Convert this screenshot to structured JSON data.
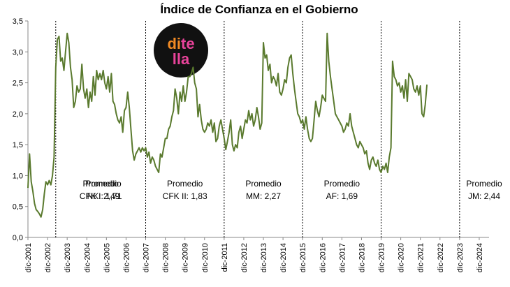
{
  "chart_data": {
    "type": "line",
    "title": "Índice de Confianza en el Gobierno",
    "xlabel": "",
    "ylabel": "",
    "ylim": [
      0,
      3.5
    ],
    "y_ticks": [
      "0,0",
      "0,5",
      "1,0",
      "1,5",
      "2,0",
      "2,5",
      "3,0",
      "3,5"
    ],
    "x_ticks": [
      "dic-2001",
      "dic-2002",
      "dic-2003",
      "dic-2004",
      "dic-2005",
      "dic-2006",
      "dic-2007",
      "dic-2008",
      "dic-2009",
      "dic-2010",
      "dic-2011",
      "dic-2012",
      "dic-2013",
      "dic-2014",
      "dic-2015",
      "dic-2016",
      "dic-2017",
      "dic-2018",
      "dic-2019",
      "dic-2020",
      "dic-2021",
      "dic-2022",
      "dic-2023",
      "dic-2024"
    ],
    "x_range": [
      "2001-12",
      "2025-06"
    ],
    "grid": false,
    "line_color": "#5a7a2e",
    "divider_dates": [
      "2003-05",
      "2007-12",
      "2011-12",
      "2015-12",
      "2019-12",
      "2023-12"
    ],
    "periods": [
      {
        "name": "Promedio",
        "label": "NK: 2,49"
      },
      {
        "name": "Promedio",
        "label": "CFK I: 1,71"
      },
      {
        "name": "Promedio",
        "label": "CFK II: 1,83"
      },
      {
        "name": "Promedio",
        "label": "MM: 2,27"
      },
      {
        "name": "Promedio",
        "label": "AF: 1,69"
      },
      {
        "name": "Promedio",
        "label": "JM: 2,44"
      }
    ],
    "series": [
      {
        "points": [
          [
            "2001-12",
            0.8
          ],
          [
            "2002-01",
            1.35
          ],
          [
            "2002-02",
            0.9
          ],
          [
            "2002-03",
            0.75
          ],
          [
            "2002-04",
            0.55
          ],
          [
            "2002-05",
            0.45
          ],
          [
            "2002-06",
            0.42
          ],
          [
            "2002-07",
            0.38
          ],
          [
            "2002-08",
            0.33
          ],
          [
            "2002-09",
            0.45
          ],
          [
            "2002-10",
            0.7
          ],
          [
            "2002-11",
            0.9
          ],
          [
            "2002-12",
            0.85
          ],
          [
            "2003-01",
            0.92
          ],
          [
            "2003-02",
            0.85
          ],
          [
            "2003-03",
            1.0
          ],
          [
            "2003-04",
            1.3
          ],
          [
            "2003-05",
            2.75
          ],
          [
            "2003-06",
            3.2
          ],
          [
            "2003-07",
            3.25
          ],
          [
            "2003-08",
            2.85
          ],
          [
            "2003-09",
            2.9
          ],
          [
            "2003-10",
            2.7
          ],
          [
            "2003-11",
            3.0
          ],
          [
            "2003-12",
            3.3
          ],
          [
            "2004-01",
            3.15
          ],
          [
            "2004-02",
            2.75
          ],
          [
            "2004-03",
            2.55
          ],
          [
            "2004-04",
            2.1
          ],
          [
            "2004-05",
            2.2
          ],
          [
            "2004-06",
            2.45
          ],
          [
            "2004-07",
            2.35
          ],
          [
            "2004-08",
            2.4
          ],
          [
            "2004-09",
            2.8
          ],
          [
            "2004-10",
            2.4
          ],
          [
            "2004-11",
            2.25
          ],
          [
            "2004-12",
            2.4
          ],
          [
            "2005-01",
            2.1
          ],
          [
            "2005-02",
            2.35
          ],
          [
            "2005-03",
            2.2
          ],
          [
            "2005-04",
            2.6
          ],
          [
            "2005-05",
            2.3
          ],
          [
            "2005-06",
            2.7
          ],
          [
            "2005-07",
            2.55
          ],
          [
            "2005-08",
            2.65
          ],
          [
            "2005-09",
            2.55
          ],
          [
            "2005-10",
            2.7
          ],
          [
            "2005-11",
            2.5
          ],
          [
            "2005-12",
            2.4
          ],
          [
            "2006-01",
            2.6
          ],
          [
            "2006-02",
            2.35
          ],
          [
            "2006-03",
            2.65
          ],
          [
            "2006-04",
            2.2
          ],
          [
            "2006-05",
            2.15
          ],
          [
            "2006-06",
            2.0
          ],
          [
            "2006-07",
            1.9
          ],
          [
            "2006-08",
            1.85
          ],
          [
            "2006-09",
            1.95
          ],
          [
            "2006-10",
            1.7
          ],
          [
            "2006-11",
            2.05
          ],
          [
            "2006-12",
            2.1
          ],
          [
            "2007-01",
            2.35
          ],
          [
            "2007-02",
            2.1
          ],
          [
            "2007-03",
            1.75
          ],
          [
            "2007-04",
            1.4
          ],
          [
            "2007-05",
            1.25
          ],
          [
            "2007-06",
            1.35
          ],
          [
            "2007-07",
            1.4
          ],
          [
            "2007-08",
            1.45
          ],
          [
            "2007-09",
            1.38
          ],
          [
            "2007-10",
            1.45
          ],
          [
            "2007-11",
            1.4
          ],
          [
            "2007-12",
            1.45
          ],
          [
            "2008-01",
            1.3
          ],
          [
            "2008-02",
            1.38
          ],
          [
            "2008-03",
            1.2
          ],
          [
            "2008-04",
            1.3
          ],
          [
            "2008-05",
            1.25
          ],
          [
            "2008-06",
            1.15
          ],
          [
            "2008-07",
            1.1
          ],
          [
            "2008-08",
            1.05
          ],
          [
            "2008-09",
            1.35
          ],
          [
            "2008-10",
            1.3
          ],
          [
            "2008-11",
            1.45
          ],
          [
            "2008-12",
            1.6
          ],
          [
            "2009-01",
            1.6
          ],
          [
            "2009-02",
            1.75
          ],
          [
            "2009-03",
            1.8
          ],
          [
            "2009-04",
            1.95
          ],
          [
            "2009-05",
            2.05
          ],
          [
            "2009-06",
            2.4
          ],
          [
            "2009-07",
            2.25
          ],
          [
            "2009-08",
            2.0
          ],
          [
            "2009-09",
            2.35
          ],
          [
            "2009-10",
            2.2
          ],
          [
            "2009-11",
            2.45
          ],
          [
            "2009-12",
            2.2
          ],
          [
            "2010-01",
            2.35
          ],
          [
            "2010-02",
            2.6
          ],
          [
            "2010-03",
            2.6
          ],
          [
            "2010-04",
            2.65
          ],
          [
            "2010-05",
            2.75
          ],
          [
            "2010-06",
            2.5
          ],
          [
            "2010-07",
            2.4
          ],
          [
            "2010-08",
            1.95
          ],
          [
            "2010-09",
            2.15
          ],
          [
            "2010-10",
            1.9
          ],
          [
            "2010-11",
            1.75
          ],
          [
            "2010-12",
            1.7
          ],
          [
            "2011-01",
            1.75
          ],
          [
            "2011-02",
            1.85
          ],
          [
            "2011-03",
            1.8
          ],
          [
            "2011-04",
            1.9
          ],
          [
            "2011-05",
            1.7
          ],
          [
            "2011-06",
            1.85
          ],
          [
            "2011-07",
            1.55
          ],
          [
            "2011-08",
            1.6
          ],
          [
            "2011-09",
            1.8
          ],
          [
            "2011-10",
            1.9
          ],
          [
            "2011-11",
            1.75
          ],
          [
            "2011-12",
            1.6
          ],
          [
            "2012-01",
            1.42
          ],
          [
            "2012-02",
            1.55
          ],
          [
            "2012-03",
            1.7
          ],
          [
            "2012-04",
            1.9
          ],
          [
            "2012-05",
            1.5
          ],
          [
            "2012-06",
            1.4
          ],
          [
            "2012-07",
            1.5
          ],
          [
            "2012-08",
            1.45
          ],
          [
            "2012-09",
            1.7
          ],
          [
            "2012-10",
            1.8
          ],
          [
            "2012-11",
            1.6
          ],
          [
            "2012-12",
            1.75
          ],
          [
            "2013-01",
            1.9
          ],
          [
            "2013-02",
            1.85
          ],
          [
            "2013-03",
            2.05
          ],
          [
            "2013-04",
            1.9
          ],
          [
            "2013-05",
            2.0
          ],
          [
            "2013-06",
            1.8
          ],
          [
            "2013-07",
            1.9
          ],
          [
            "2013-08",
            2.1
          ],
          [
            "2013-09",
            1.95
          ],
          [
            "2013-10",
            1.75
          ],
          [
            "2013-11",
            1.85
          ],
          [
            "2013-12",
            3.15
          ],
          [
            "2014-01",
            2.9
          ],
          [
            "2014-02",
            2.95
          ],
          [
            "2014-03",
            2.7
          ],
          [
            "2014-04",
            2.8
          ],
          [
            "2014-05",
            2.5
          ],
          [
            "2014-06",
            2.6
          ],
          [
            "2014-07",
            2.55
          ],
          [
            "2014-08",
            2.45
          ],
          [
            "2014-09",
            2.65
          ],
          [
            "2014-10",
            2.35
          ],
          [
            "2014-11",
            2.3
          ],
          [
            "2014-12",
            2.4
          ],
          [
            "2015-01",
            2.55
          ],
          [
            "2015-02",
            2.5
          ],
          [
            "2015-03",
            2.75
          ],
          [
            "2015-04",
            2.9
          ],
          [
            "2015-05",
            2.95
          ],
          [
            "2015-06",
            2.65
          ],
          [
            "2015-07",
            2.4
          ],
          [
            "2015-08",
            2.2
          ],
          [
            "2015-09",
            2.0
          ],
          [
            "2015-10",
            1.95
          ],
          [
            "2015-11",
            1.85
          ],
          [
            "2015-12",
            1.9
          ],
          [
            "2016-01",
            1.75
          ],
          [
            "2016-02",
            1.95
          ],
          [
            "2016-03",
            1.75
          ],
          [
            "2016-04",
            1.6
          ],
          [
            "2016-05",
            1.55
          ],
          [
            "2016-06",
            1.6
          ],
          [
            "2016-07",
            1.9
          ],
          [
            "2016-08",
            2.2
          ],
          [
            "2016-09",
            2.05
          ],
          [
            "2016-10",
            1.95
          ],
          [
            "2016-11",
            2.1
          ],
          [
            "2016-12",
            2.3
          ],
          [
            "2017-01",
            2.25
          ],
          [
            "2017-02",
            2.2
          ],
          [
            "2017-03",
            3.3
          ],
          [
            "2017-04",
            2.85
          ],
          [
            "2017-05",
            2.6
          ],
          [
            "2017-06",
            2.4
          ],
          [
            "2017-07",
            2.2
          ],
          [
            "2017-08",
            2.0
          ],
          [
            "2017-09",
            1.95
          ],
          [
            "2017-10",
            1.9
          ],
          [
            "2017-11",
            1.85
          ],
          [
            "2017-12",
            1.8
          ],
          [
            "2018-01",
            1.7
          ],
          [
            "2018-02",
            1.75
          ],
          [
            "2018-03",
            1.85
          ],
          [
            "2018-04",
            1.8
          ],
          [
            "2018-05",
            2.0
          ],
          [
            "2018-06",
            1.8
          ],
          [
            "2018-07",
            1.7
          ],
          [
            "2018-08",
            1.6
          ],
          [
            "2018-09",
            1.5
          ],
          [
            "2018-10",
            1.45
          ],
          [
            "2018-11",
            1.55
          ],
          [
            "2018-12",
            1.5
          ],
          [
            "2019-01",
            1.45
          ],
          [
            "2019-02",
            1.35
          ],
          [
            "2019-03",
            1.4
          ],
          [
            "2019-04",
            1.2
          ],
          [
            "2019-05",
            1.1
          ],
          [
            "2019-06",
            1.25
          ],
          [
            "2019-07",
            1.3
          ],
          [
            "2019-08",
            1.2
          ],
          [
            "2019-09",
            1.15
          ],
          [
            "2019-10",
            1.25
          ],
          [
            "2019-11",
            1.1
          ],
          [
            "2019-12",
            1.05
          ],
          [
            "2020-01",
            1.15
          ],
          [
            "2020-02",
            1.1
          ],
          [
            "2020-03",
            1.2
          ],
          [
            "2020-04",
            1.05
          ],
          [
            "2020-05",
            1.3
          ],
          [
            "2020-06",
            1.45
          ],
          [
            "2020-07",
            2.85
          ],
          [
            "2020-08",
            2.6
          ],
          [
            "2020-09",
            2.55
          ],
          [
            "2020-10",
            2.45
          ],
          [
            "2020-11",
            2.5
          ],
          [
            "2020-12",
            2.35
          ],
          [
            "2021-01",
            2.45
          ],
          [
            "2021-02",
            2.25
          ],
          [
            "2021-03",
            2.55
          ],
          [
            "2021-04",
            2.2
          ],
          [
            "2021-05",
            2.65
          ],
          [
            "2021-06",
            2.6
          ],
          [
            "2021-07",
            2.55
          ],
          [
            "2021-08",
            2.4
          ],
          [
            "2021-09",
            2.35
          ],
          [
            "2021-10",
            2.45
          ],
          [
            "2021-11",
            2.3
          ],
          [
            "2021-12",
            2.45
          ],
          [
            "2022-01",
            2.0
          ],
          [
            "2022-02",
            1.95
          ],
          [
            "2022-03",
            2.15
          ],
          [
            "2022-04",
            2.47
          ]
        ]
      }
    ]
  }
}
